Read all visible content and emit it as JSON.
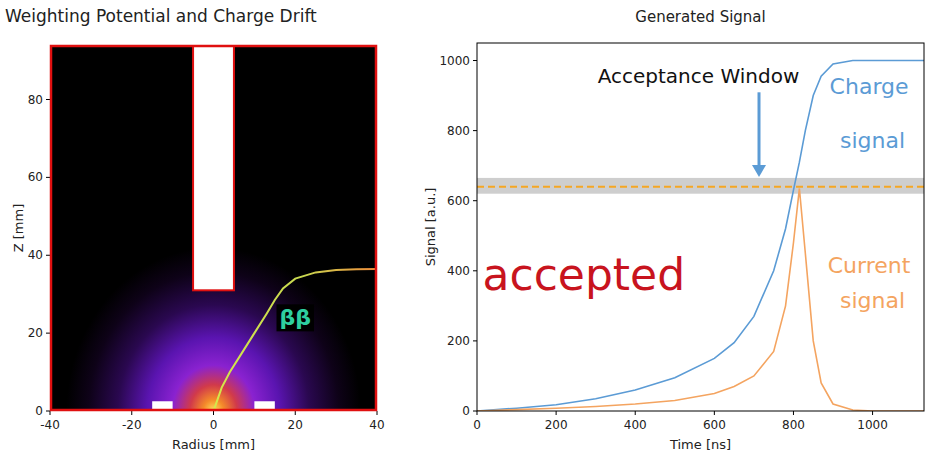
{
  "chart_data": [
    {
      "type": "line",
      "title": "Weighting Potential and Charge Drift",
      "x_label": "Radius [mm]",
      "y_label": "Z [mm]",
      "xlim": [
        -40,
        40
      ],
      "xticks": [
        -40,
        -20,
        0,
        20,
        40
      ],
      "ylim": [
        0,
        94
      ],
      "yticks": [
        0,
        20,
        40,
        60,
        80
      ],
      "x": [
        40,
        35,
        30,
        25,
        20,
        17,
        15,
        13,
        10,
        7,
        4,
        2,
        1,
        0
      ],
      "series": [
        {
          "name": "ββ",
          "values": [
            36.5,
            36.4,
            36.2,
            35.6,
            34,
            31.5,
            28.5,
            25,
            20,
            15,
            10,
            6,
            3,
            0
          ]
        }
      ],
      "borehole_x": [
        -5,
        5
      ],
      "borehole_z": [
        31,
        94
      ],
      "contacts_x": [
        [
          -15,
          -10
        ],
        [
          10,
          15
        ]
      ],
      "contacts_z": [
        0,
        2.5
      ]
    },
    {
      "type": "line",
      "title": "Generated Signal",
      "x_label": "Time [ns]",
      "y_label": "Signal [a.u.]",
      "xlim": [
        0,
        1130
      ],
      "xticks": [
        0,
        200,
        400,
        600,
        800,
        1000
      ],
      "ylim": [
        0,
        1050
      ],
      "yticks": [
        0,
        200,
        400,
        600,
        800,
        1000
      ],
      "x": [
        0,
        100,
        200,
        300,
        400,
        500,
        600,
        650,
        700,
        750,
        780,
        800,
        815,
        830,
        850,
        870,
        900,
        950,
        1000,
        1130
      ],
      "series": [
        {
          "name": "Charge signal",
          "color": "#5b9bd5",
          "values": [
            0,
            8,
            18,
            35,
            60,
            95,
            150,
            195,
            270,
            400,
            520,
            630,
            710,
            800,
            900,
            955,
            990,
            1000,
            1000,
            1000
          ]
        },
        {
          "name": "Current signal",
          "color": "#f4a460",
          "values": [
            0,
            4,
            8,
            13,
            20,
            30,
            50,
            70,
            100,
            170,
            300,
            480,
            635,
            450,
            200,
            80,
            20,
            3,
            0,
            0
          ]
        }
      ],
      "annotations": [
        "Acceptance Window",
        "accepted"
      ],
      "threshold": 640,
      "window": [
        620,
        665
      ]
    }
  ]
}
